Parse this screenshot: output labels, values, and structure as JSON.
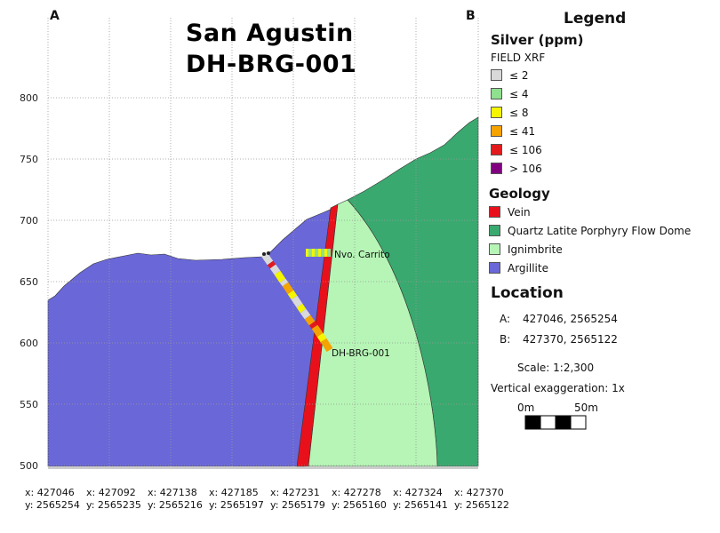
{
  "corner_a": "A",
  "corner_b": "B",
  "title_line1": "San Agustin",
  "title_line2": "DH-BRG-001",
  "y_axis": {
    "ticks": [
      "800",
      "750",
      "700",
      "650",
      "600",
      "550",
      "500"
    ]
  },
  "x_axis": {
    "ticks": [
      {
        "x": "x: 427046",
        "y": "y: 2565254"
      },
      {
        "x": "x: 427092",
        "y": "y: 2565235"
      },
      {
        "x": "x: 427138",
        "y": "y: 2565216"
      },
      {
        "x": "x: 427185",
        "y": "y: 2565197"
      },
      {
        "x": "x: 427231",
        "y": "y: 2565179"
      },
      {
        "x": "x: 427278",
        "y": "y: 2565160"
      },
      {
        "x": "x: 427324",
        "y": "y: 2565141"
      },
      {
        "x": "x: 427370",
        "y": "y: 2565122"
      }
    ]
  },
  "labels": {
    "tunnel": "Nvo. Carrito",
    "drillhole": "DH-BRG-001"
  },
  "legend": {
    "title": "Legend",
    "silver": {
      "title": "Silver (ppm)",
      "subtitle": "FIELD XRF",
      "items": [
        {
          "label": "≤ 2",
          "color": "#d9d9d9"
        },
        {
          "label": "≤ 4",
          "color": "#8fe08f"
        },
        {
          "label": "≤ 8",
          "color": "#f5f500"
        },
        {
          "label": "≤ 41",
          "color": "#f4a300"
        },
        {
          "label": "≤ 106",
          "color": "#e31a1c"
        },
        {
          "label": "> 106",
          "color": "#800080"
        }
      ]
    },
    "geology": {
      "title": "Geology",
      "items": [
        {
          "label": "Vein",
          "color": "#e8111b"
        },
        {
          "label": "Quartz Latite Porphyry Flow Dome",
          "color": "#3aa96f"
        },
        {
          "label": "Ignimbrite",
          "color": "#b6f5b6"
        },
        {
          "label": "Argillite",
          "color": "#6a67d8"
        }
      ]
    },
    "location": {
      "title": "Location",
      "a_label": "A:",
      "a_value": "427046, 2565254",
      "b_label": "B:",
      "b_value": "427370, 2565122"
    },
    "scale": "Scale: 1:2,300",
    "exaggeration": "Vertical exaggeration: 1x",
    "scalebar": {
      "start": "0m",
      "end": "50m"
    }
  }
}
